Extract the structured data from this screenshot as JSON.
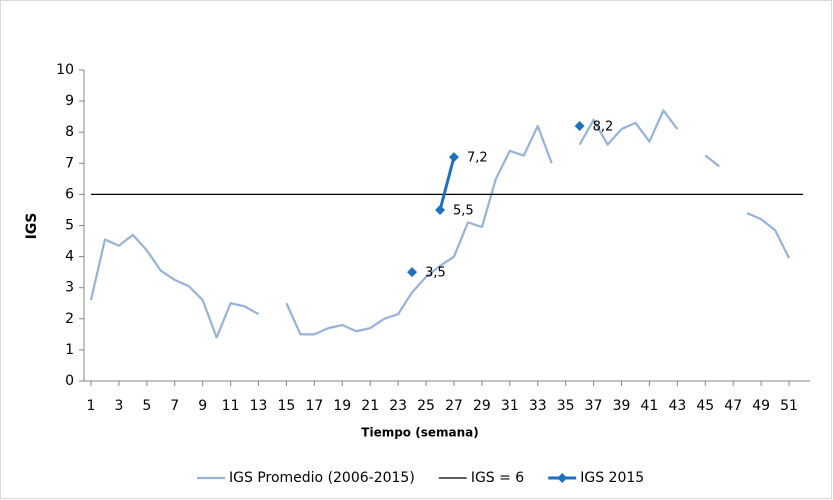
{
  "chart_data": {
    "type": "line",
    "y_label": "IGS",
    "x_label": "Tiempo (semana)",
    "x": [
      1,
      2,
      3,
      4,
      5,
      6,
      7,
      8,
      9,
      10,
      11,
      12,
      13,
      14,
      15,
      16,
      17,
      18,
      19,
      20,
      21,
      22,
      23,
      24,
      25,
      26,
      27,
      28,
      29,
      30,
      31,
      32,
      33,
      34,
      35,
      36,
      37,
      38,
      39,
      40,
      41,
      42,
      43,
      44,
      45,
      46,
      47,
      48,
      49,
      50,
      51,
      52
    ],
    "xlim": [
      0.5,
      52.5
    ],
    "xticks": [
      1,
      3,
      5,
      7,
      9,
      11,
      13,
      15,
      17,
      19,
      21,
      23,
      25,
      27,
      29,
      31,
      33,
      35,
      37,
      39,
      41,
      43,
      45,
      47,
      49,
      51
    ],
    "ylim": [
      0,
      10
    ],
    "yticks": [
      0,
      1,
      2,
      3,
      4,
      5,
      6,
      7,
      8,
      9,
      10
    ],
    "grid": false,
    "legend": "bottom",
    "series": [
      {
        "name": "IGS Promedio (2006-2015)",
        "color": "#95b3d7",
        "marker": false,
        "values": [
          2.6,
          4.55,
          4.35,
          4.7,
          4.2,
          3.55,
          3.25,
          3.05,
          2.6,
          1.4,
          2.5,
          2.4,
          2.15,
          null,
          2.5,
          1.5,
          1.5,
          1.7,
          1.8,
          1.6,
          1.7,
          2.0,
          2.15,
          2.85,
          3.35,
          3.7,
          4.0,
          5.1,
          4.95,
          6.5,
          7.4,
          7.25,
          8.2,
          7.0,
          null,
          7.6,
          8.4,
          7.6,
          8.1,
          8.3,
          7.7,
          8.7,
          8.1,
          null,
          7.25,
          6.9,
          null,
          5.4,
          5.2,
          4.85,
          3.95,
          null
        ]
      },
      {
        "name": "IGS = 6",
        "color": "#000000",
        "marker": false,
        "values": [
          6,
          6,
          6,
          6,
          6,
          6,
          6,
          6,
          6,
          6,
          6,
          6,
          6,
          6,
          6,
          6,
          6,
          6,
          6,
          6,
          6,
          6,
          6,
          6,
          6,
          6,
          6,
          6,
          6,
          6,
          6,
          6,
          6,
          6,
          6,
          6,
          6,
          6,
          6,
          6,
          6,
          6,
          6,
          6,
          6,
          6,
          6,
          6,
          6,
          6,
          6,
          6
        ]
      },
      {
        "name": "IGS 2015",
        "color": "#1f6fc0",
        "marker": true,
        "values": [
          null,
          null,
          null,
          null,
          null,
          null,
          null,
          null,
          null,
          null,
          null,
          null,
          null,
          null,
          null,
          null,
          null,
          null,
          null,
          null,
          null,
          null,
          null,
          3.5,
          null,
          5.5,
          7.2,
          null,
          null,
          null,
          null,
          null,
          null,
          null,
          null,
          8.2,
          null,
          null,
          null,
          null,
          null,
          null,
          null,
          null,
          null,
          null,
          null,
          null,
          null,
          null,
          null,
          null
        ],
        "value_labels": [
          null,
          null,
          null,
          null,
          null,
          null,
          null,
          null,
          null,
          null,
          null,
          null,
          null,
          null,
          null,
          null,
          null,
          null,
          null,
          null,
          null,
          null,
          null,
          "3,5",
          null,
          "5,5",
          "7,2",
          null,
          null,
          null,
          null,
          null,
          null,
          null,
          null,
          "8,2",
          null,
          null,
          null,
          null,
          null,
          null,
          null,
          null,
          null,
          null,
          null,
          null,
          null,
          null,
          null,
          null
        ]
      }
    ]
  }
}
